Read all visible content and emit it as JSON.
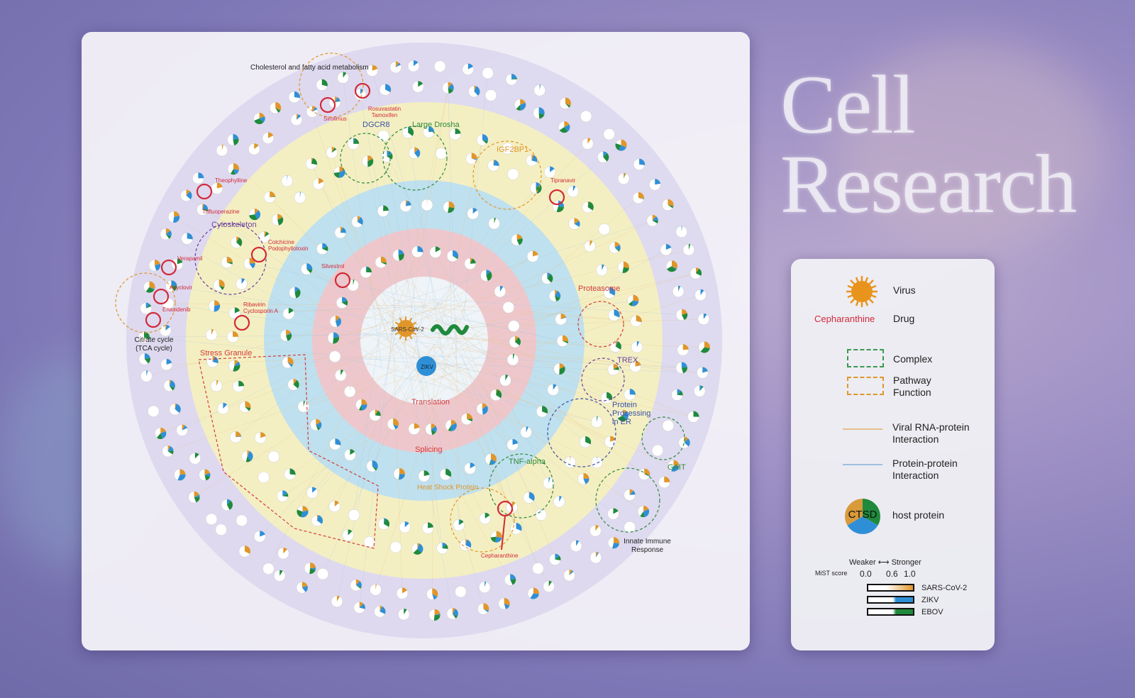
{
  "journal": {
    "title_line1": "Cell",
    "title_line2": "Research"
  },
  "diagram": {
    "center": {
      "virus1": "SARS-CoV-2",
      "virus2": "ZIKV"
    },
    "groups": {
      "cholesterol": "Cholesterol and fatty acid metabolism",
      "dgcr8": "DGCR8",
      "large_drosha": "Large Drosha",
      "igf2bp1": "IGF2BP1",
      "cytoskeleton": "Cytoskeleton",
      "tca": "Citrate cycle (TCA cycle)",
      "stress_granule": "Stress Granule",
      "proteasome": "Proteasome",
      "trex": "TREX",
      "translation": "Translation",
      "protein_processing": "Protein Processing in ER",
      "splicing": "Splicing",
      "gait": "GAIT",
      "tnf_alpha": "TNF-alpha",
      "heat_shock": "Heat Shock Protein",
      "innate_immune": "Innate Immune Response"
    },
    "drugs": {
      "sirolimus": "Sirolimus",
      "rosuvastatin": "Rosuvastatin Tamoxifen",
      "theophylline": "Theophylline",
      "tipranavir": "Tipranavir",
      "trifluoperazine": "Trifluoperazine",
      "colchicine": "Colchicine Podophyllotoxin",
      "verapamil": "Verapamil",
      "acyclovir": "Acyclovir",
      "enasidenib": "Enasidenib",
      "ribavirin": "Ribavirin Cyclosporin A",
      "silvestrol": "Silvestrol",
      "cepharanthine": "Cepharanthine"
    },
    "colors": {
      "sars": "#e0962a",
      "zikv": "#2f8fd6",
      "ebov": "#1f8a3c",
      "drug": "#d22a3a",
      "outer_ring": "#d9d4ee",
      "pathway_ring": "#f4efc2",
      "splicing_ring": "#bfe0ee",
      "translation_ring": "#eec7cc",
      "core": "#eef4f8"
    }
  },
  "legend": {
    "virus": "Virus",
    "drug_example": "Cepharanthine",
    "drug": "Drug",
    "complex": "Complex",
    "pathway": "Pathway Function",
    "viral_rna": "Viral RNA-protein Interaction",
    "ppi": "Protein-protein Interaction",
    "host_example": "CTSD",
    "host": "host protein",
    "scale_caption": "Weaker ⟷ Stronger",
    "mist_label": "MiST score",
    "ticks": [
      "0.0",
      "0.6",
      "1.0"
    ],
    "series": [
      "SARS-CoV-2",
      "ZIKV",
      "EBOV"
    ]
  }
}
